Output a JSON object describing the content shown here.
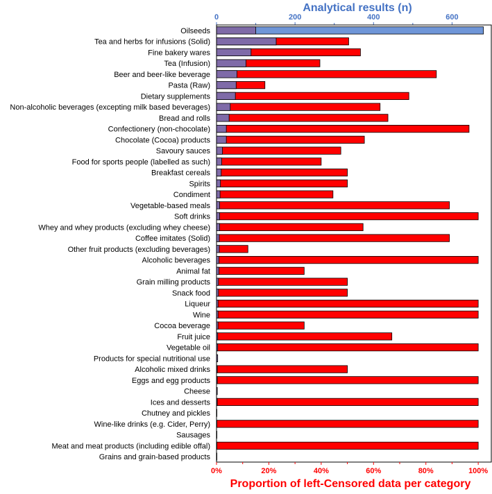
{
  "chart_data": {
    "type": "bar",
    "orientation": "horizontal",
    "top_axis": {
      "label": "Analytical results (n)",
      "range": [
        0,
        700
      ],
      "ticks": [
        0,
        200,
        400,
        600
      ],
      "color": "#4472c4"
    },
    "bottom_axis": {
      "label": "Proportion of left-Censored data per category",
      "range": [
        0,
        1.05
      ],
      "ticks": [
        "0%",
        "20%",
        "40%",
        "60%",
        "80%",
        "100%"
      ],
      "tick_values": [
        0,
        0.2,
        0.4,
        0.6,
        0.8,
        1.0
      ],
      "color": "#ff0000"
    },
    "series": [
      {
        "name": "Proportion of left-censored data",
        "color": "#ff0000",
        "axis": "bottom"
      },
      {
        "name": "Analytical results (n)",
        "color": "#7f6ba8",
        "axis": "top"
      }
    ],
    "categories": [
      "Oilseeds",
      "Tea and herbs for infusions (Solid)",
      "Fine bakery wares",
      "Tea (Infusion)",
      "Beer and beer-like beverage",
      "Pasta (Raw)",
      "Dietary supplements",
      "Non-alcoholic beverages (excepting milk based beverages)",
      "Bread and rolls",
      "Confectionery (non-chocolate)",
      "Chocolate (Cocoa) products",
      "Savoury sauces",
      "Food for sports people (labelled as such)",
      "Breakfast cereals",
      "Spirits",
      "Condiment",
      "Vegetable-based meals",
      "Soft drinks",
      "Whey and whey products (excluding whey cheese)",
      "Coffee imitates (Solid)",
      "Other fruit products (excluding beverages)",
      "Alcoholic beverages",
      "Animal fat",
      "Grain milling products",
      "Snack food",
      "Liqueur",
      "Wine",
      "Cocoa beverage",
      "Fruit juice",
      "Vegetable oil",
      "Products for special nutritional use",
      "Alcoholic mixed drinks",
      "Eggs and egg products",
      "Cheese",
      "Ices and desserts",
      "Chutney and pickles",
      "Wine-like drinks (e.g. Cider, Perry)",
      "Sausages",
      "Meat and meat products (including edible offal)",
      "Grains and grain-based products"
    ],
    "proportion_censored": [
      1.02,
      0.505,
      0.55,
      0.395,
      0.84,
      0.185,
      0.735,
      0.625,
      0.655,
      0.965,
      0.565,
      0.475,
      0.4,
      0.5,
      0.5,
      0.445,
      0.89,
      1.0,
      0.56,
      0.89,
      0.12,
      1.0,
      0.335,
      0.5,
      0.5,
      1.0,
      1.0,
      0.335,
      0.67,
      1.0,
      0.0,
      0.5,
      1.0,
      0.0,
      1.0,
      0.0,
      1.0,
      0.0,
      1.0,
      0.0
    ],
    "analytical_results_n": [
      100,
      152,
      88,
      75,
      52,
      50,
      48,
      35,
      32,
      25,
      25,
      15,
      13,
      12,
      10,
      9,
      8,
      8,
      8,
      7,
      7,
      6,
      6,
      5,
      5,
      4,
      4,
      4,
      3,
      3,
      3,
      2,
      2,
      2,
      2,
      1,
      1,
      1,
      1,
      1
    ]
  }
}
